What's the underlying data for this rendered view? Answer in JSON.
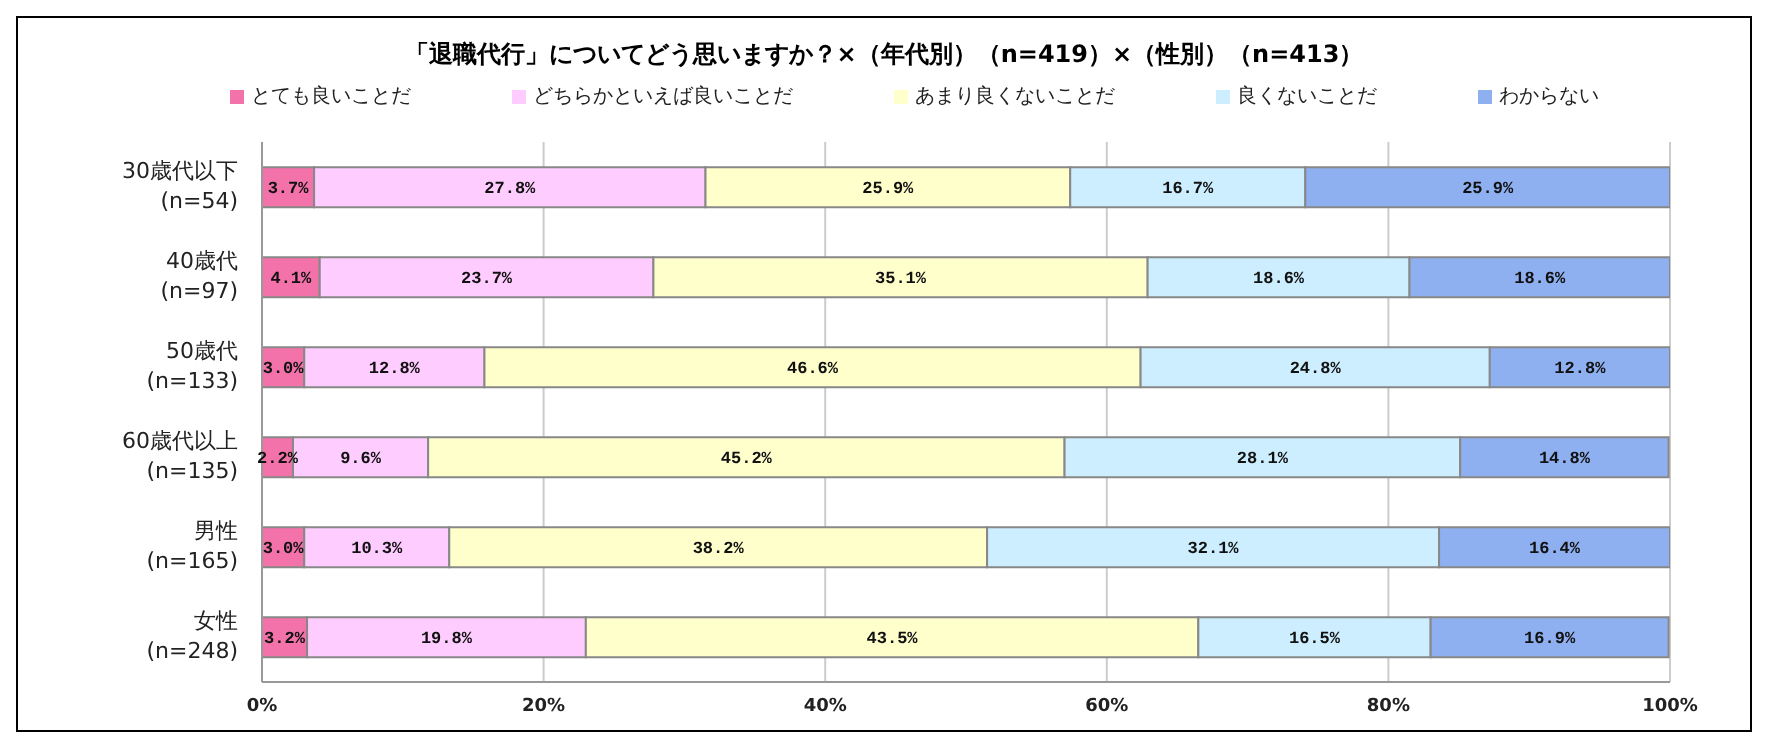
{
  "chart_data": {
    "type": "bar",
    "orientation": "horizontal",
    "stacked": true,
    "title": "「退職代行」についてどう思いますか？×（年代別）（n=419）×（性別）（n=413）",
    "categories": [
      "30歳代以下\n(n=54)",
      "40歳代\n(n=97)",
      "50歳代\n(n=133)",
      "60歳代以上\n(n=135)",
      "男性\n(n=165)",
      "女性\n(n=248)"
    ],
    "series": [
      {
        "name": "とても良いことだ",
        "color": "#f472aa",
        "values": [
          3.7,
          4.1,
          3.0,
          2.2,
          3.0,
          3.2
        ],
        "value_labels": [
          "3.7%",
          "4.1%",
          "3.0%",
          "2.2%",
          "3.0%",
          "3.2%"
        ]
      },
      {
        "name": "どちらかといえば良いことだ",
        "color": "#ffccff",
        "values": [
          27.8,
          23.7,
          12.8,
          9.6,
          10.3,
          19.8
        ],
        "value_labels": [
          "27.8%",
          "23.7%",
          "12.8%",
          "9.6%",
          "10.3%",
          "19.8%"
        ]
      },
      {
        "name": "あまり良くないことだ",
        "color": "#ffffcc",
        "values": [
          25.9,
          35.1,
          46.6,
          45.2,
          38.2,
          43.5
        ],
        "value_labels": [
          "25.9%",
          "35.1%",
          "46.6%",
          "45.2%",
          "38.2%",
          "43.5%"
        ]
      },
      {
        "name": "良くないことだ",
        "color": "#cceeff",
        "values": [
          16.7,
          18.6,
          24.8,
          28.1,
          32.1,
          16.5
        ],
        "value_labels": [
          "16.7%",
          "18.6%",
          "24.8%",
          "28.1%",
          "32.1%",
          "16.5%"
        ]
      },
      {
        "name": "わからない",
        "color": "#8fb0f0",
        "values": [
          25.9,
          18.6,
          12.8,
          14.8,
          16.4,
          16.9
        ],
        "value_labels": [
          "25.9%",
          "18.6%",
          "12.8%",
          "14.8%",
          "16.4%",
          "16.9%"
        ]
      }
    ],
    "xlim": [
      0,
      100
    ],
    "xticks": [
      {
        "value": 0,
        "label": "0%"
      },
      {
        "value": 20,
        "label": "20%"
      },
      {
        "value": 40,
        "label": "40%"
      },
      {
        "value": 60,
        "label": "60%"
      },
      {
        "value": 80,
        "label": "80%"
      },
      {
        "value": 100,
        "label": "100%"
      }
    ],
    "grid": "x",
    "legend": "top"
  }
}
